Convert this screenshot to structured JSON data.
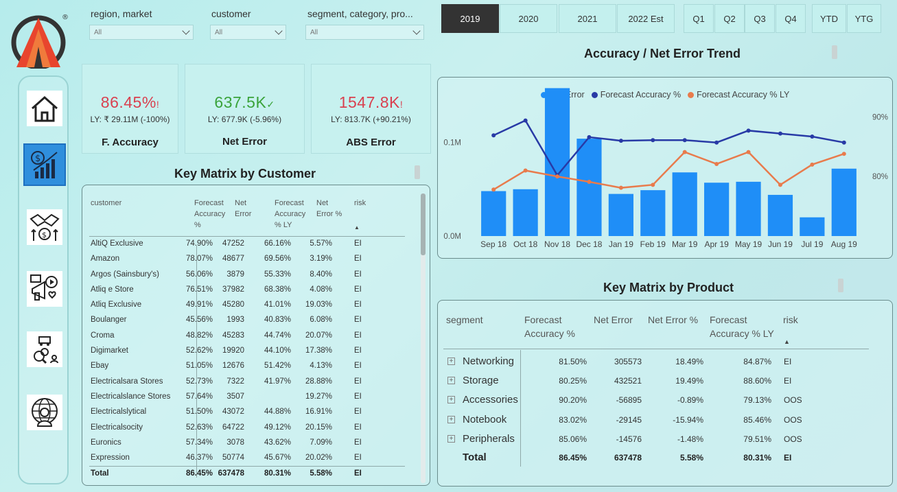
{
  "filters": [
    {
      "label": "region, market",
      "value": "All"
    },
    {
      "label": "customer",
      "value": "All"
    },
    {
      "label": "segment, category, pro...",
      "value": "All"
    }
  ],
  "periods": [
    "2019",
    "2020",
    "2021",
    "2022 Est",
    "Q1",
    "Q2",
    "Q3",
    "Q4",
    "YTD",
    "YTG"
  ],
  "selected_period": "2019",
  "nav_icons": [
    "home-icon",
    "finance-growth-icon",
    "handshake-dollar-icon",
    "marketing-megaphone-icon",
    "supply-chain-icon",
    "global-executive-icon"
  ],
  "kpis": [
    {
      "value": "86.45%",
      "flag": "!",
      "ly": "LY: ₹ 29.11M (-100%)",
      "title": "F. Accuracy",
      "color": "#d9404f"
    },
    {
      "value": "637.5K",
      "flag": "✓",
      "ly": "LY: 677.9K (-5.96%)",
      "title": "Net Error",
      "color": "#3aa33a"
    },
    {
      "value": "1547.8K",
      "flag": "!",
      "ly": "LY: 813.7K (+90.21%)",
      "title": "ABS Error",
      "color": "#d9404f"
    }
  ],
  "customer_table": {
    "title": "Key Matrix by Customer",
    "columns": [
      "customer",
      "Forecast Accuracy %",
      "Net Error",
      "Forecast Accuracy % LY",
      "Net Error %",
      "risk"
    ],
    "rows": [
      [
        "AltiQ Exclusive",
        "74.90%",
        "47252",
        "66.16%",
        "5.57%",
        "EI"
      ],
      [
        "Amazon",
        "78.07%",
        "48677",
        "69.56%",
        "3.19%",
        "EI"
      ],
      [
        "Argos (Sainsbury's)",
        "56.06%",
        "3879",
        "55.33%",
        "8.40%",
        "EI"
      ],
      [
        "Atliq e Store",
        "76.51%",
        "37982",
        "68.38%",
        "4.08%",
        "EI"
      ],
      [
        "Atliq Exclusive",
        "49.91%",
        "45280",
        "41.01%",
        "19.03%",
        "EI"
      ],
      [
        "Boulanger",
        "45.56%",
        "1993",
        "40.83%",
        "6.08%",
        "EI"
      ],
      [
        "Croma",
        "48.82%",
        "45283",
        "44.74%",
        "20.07%",
        "EI"
      ],
      [
        "Digimarket",
        "52.62%",
        "19920",
        "44.10%",
        "17.38%",
        "EI"
      ],
      [
        "Ebay",
        "51.05%",
        "12676",
        "51.42%",
        "4.13%",
        "EI"
      ],
      [
        "Electricalsara Stores",
        "52.73%",
        "7322",
        "41.97%",
        "28.88%",
        "EI"
      ],
      [
        "Electricalslance Stores",
        "57.64%",
        "3507",
        "",
        "19.27%",
        "EI"
      ],
      [
        "Electricalslytical",
        "51.50%",
        "43072",
        "44.88%",
        "16.91%",
        "EI"
      ],
      [
        "Electricalsocity",
        "52.63%",
        "64722",
        "49.12%",
        "20.15%",
        "EI"
      ],
      [
        "Euronics",
        "57.34%",
        "3078",
        "43.62%",
        "7.09%",
        "EI"
      ],
      [
        "Expression",
        "46.37%",
        "50774",
        "45.67%",
        "20.02%",
        "EI"
      ]
    ],
    "total": [
      "Total",
      "86.45%",
      "637478",
      "80.31%",
      "5.58%",
      "EI"
    ]
  },
  "chart_data": {
    "type": "bar",
    "title": "Accuracy / Net Error Trend",
    "categories": [
      "Sep 18",
      "Oct 18",
      "Nov 18",
      "Dec 18",
      "Jan 19",
      "Feb 19",
      "Mar 19",
      "Apr 19",
      "May 19",
      "Jun 19",
      "Jul 19",
      "Aug 19"
    ],
    "series": [
      {
        "name": "Net Error",
        "type": "bar",
        "axis": "left",
        "color": "#1f8ef7",
        "values": [
          0.048,
          0.05,
          0.158,
          0.104,
          0.045,
          0.049,
          0.068,
          0.057,
          0.058,
          0.044,
          0.02,
          0.072
        ]
      },
      {
        "name": "Forecast Accuracy %",
        "type": "line",
        "axis": "right",
        "color": "#283aa6",
        "values": [
          86.9,
          89.4,
          80.2,
          86.6,
          86.0,
          86.1,
          86.1,
          85.7,
          87.7,
          87.2,
          86.7,
          85.7
        ]
      },
      {
        "name": "Forecast Accuracy % LY",
        "type": "line",
        "axis": "right",
        "color": "#e87b4c",
        "values": [
          77.8,
          81.0,
          80.0,
          79.1,
          78.1,
          78.6,
          84.1,
          82.1,
          84.1,
          78.6,
          82.0,
          83.8
        ]
      }
    ],
    "left_ticks": [
      "0.0M",
      "0.1M"
    ],
    "left_ylim": [
      0,
      0.14
    ],
    "right_ticks": [
      "80%",
      "90%"
    ],
    "right_ylim": [
      70,
      92
    ],
    "legend": "top-center",
    "grid": false
  },
  "product_table": {
    "title": "Key Matrix by Product",
    "columns": [
      "segment",
      "Forecast Accuracy %",
      "Net Error",
      "Net Error %",
      "Forecast Accuracy % LY",
      "risk"
    ],
    "rows": [
      [
        "Networking",
        "81.50%",
        "305573",
        "18.49%",
        "84.87%",
        "EI"
      ],
      [
        "Storage",
        "80.25%",
        "432521",
        "19.49%",
        "88.60%",
        "EI"
      ],
      [
        "Accessories",
        "90.20%",
        "-56895",
        "-0.89%",
        "79.13%",
        "OOS"
      ],
      [
        "Notebook",
        "83.02%",
        "-29145",
        "-15.94%",
        "85.46%",
        "OOS"
      ],
      [
        "Peripherals",
        "85.06%",
        "-14576",
        "-1.48%",
        "79.51%",
        "OOS"
      ]
    ],
    "total": [
      "Total",
      "86.45%",
      "637478",
      "5.58%",
      "80.31%",
      "EI"
    ]
  },
  "expand_symbol": "+",
  "sort_arrow": "▲",
  "registered_mark": "®"
}
